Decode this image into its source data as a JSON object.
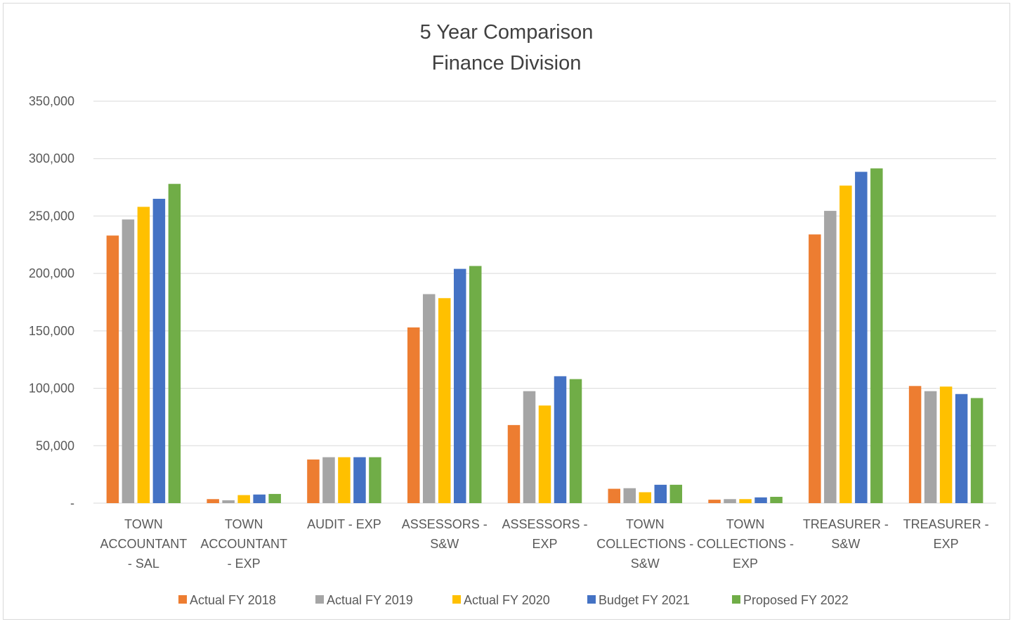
{
  "chart_data": {
    "type": "bar",
    "title_lines": [
      "5 Year Comparison",
      "Finance Division"
    ],
    "categories": [
      [
        "TOWN",
        "ACCOUNTANT",
        "- SAL"
      ],
      [
        "TOWN",
        "ACCOUNTANT",
        "- EXP"
      ],
      [
        "AUDIT - EXP"
      ],
      [
        "ASSESSORS -",
        "S&W"
      ],
      [
        "ASSESSORS -",
        "EXP"
      ],
      [
        "TOWN",
        "COLLECTIONS -",
        "S&W"
      ],
      [
        "TOWN",
        "COLLECTIONS -",
        "EXP"
      ],
      [
        "TREASURER -",
        "S&W"
      ],
      [
        "TREASURER -",
        "EXP"
      ]
    ],
    "series": [
      {
        "name": "Actual FY 2018",
        "color": "#ed7d31",
        "values": [
          233000,
          3500,
          38000,
          153000,
          68000,
          12500,
          3000,
          234000,
          102000
        ]
      },
      {
        "name": "Actual FY 2019",
        "color": "#a5a5a5",
        "values": [
          247000,
          2500,
          40000,
          182000,
          97500,
          13000,
          3500,
          254500,
          97500
        ]
      },
      {
        "name": "Actual FY 2020",
        "color": "#ffc000",
        "values": [
          258000,
          7000,
          40000,
          178500,
          85000,
          9500,
          3500,
          276500,
          101500
        ]
      },
      {
        "name": "Budget FY 2021",
        "color": "#4472c4",
        "values": [
          265000,
          7500,
          40000,
          204000,
          110500,
          16000,
          5000,
          288500,
          95000
        ]
      },
      {
        "name": "Proposed FY 2022",
        "color": "#70ad47",
        "values": [
          278000,
          8000,
          40000,
          206500,
          108000,
          16000,
          5500,
          291500,
          91500
        ]
      }
    ],
    "y_ticks": [
      0,
      50000,
      100000,
      150000,
      200000,
      250000,
      300000,
      350000
    ],
    "y_tick_labels": [
      "-",
      "50,000",
      "100,000",
      "150,000",
      "200,000",
      "250,000",
      "300,000",
      "350,000"
    ],
    "ylim": [
      0,
      350000
    ],
    "grid": true,
    "legend_position": "bottom"
  }
}
